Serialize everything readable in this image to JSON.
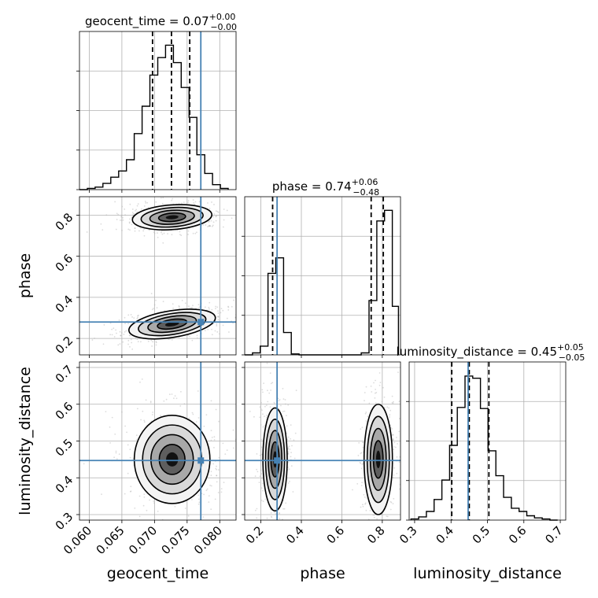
{
  "chart_data": {
    "type": "corner",
    "truth_color": "#4682b4",
    "parameters": [
      {
        "name": "geocent_time",
        "label": "geocent_time",
        "range": [
          0.0585,
          0.0825
        ],
        "ticks": [
          "0.060",
          "0.065",
          "0.070",
          "0.075",
          "0.080"
        ],
        "tick_values": [
          0.06,
          0.065,
          0.07,
          0.075,
          0.08
        ],
        "truth": 0.0771,
        "quantiles": [
          0.0697,
          0.0726,
          0.0754
        ],
        "title_main": "geocent_time = 0.07",
        "title_sup": "+0.00",
        "title_sub": "−0.00"
      },
      {
        "name": "phase",
        "label": "phase",
        "range": [
          0.12,
          0.89
        ],
        "ticks": [
          "0.2",
          "0.4",
          "0.6",
          "0.8"
        ],
        "tick_values": [
          0.2,
          0.4,
          0.6,
          0.8
        ],
        "truth": 0.28,
        "quantiles": [
          0.258,
          0.745,
          0.805
        ],
        "title_main": "phase = 0.74",
        "title_sup": "+0.06",
        "title_sub": "−0.48"
      },
      {
        "name": "luminosity_distance",
        "label": "luminosity_distance",
        "range": [
          0.285,
          0.715
        ],
        "ticks": [
          "0.3",
          "0.4",
          "0.5",
          "0.6",
          "0.7"
        ],
        "tick_values": [
          0.3,
          0.4,
          0.5,
          0.6,
          0.7
        ],
        "truth": 0.447,
        "quantiles": [
          0.402,
          0.45,
          0.504
        ],
        "title_main": "luminosity_distance = 0.45",
        "title_sup": "+0.05",
        "title_sub": "−0.05"
      }
    ],
    "histograms": {
      "geocent_time": {
        "bin_edges": [
          0.0585,
          0.0597,
          0.0609,
          0.0621,
          0.0633,
          0.0645,
          0.0657,
          0.0669,
          0.0681,
          0.0693,
          0.0705,
          0.0717,
          0.0729,
          0.0741,
          0.0753,
          0.0765,
          0.0777,
          0.0789,
          0.0801,
          0.0813
        ],
        "counts": [
          0,
          1,
          2,
          5,
          10,
          15,
          24,
          45,
          67,
          92,
          106,
          116,
          102,
          82,
          58,
          28,
          13,
          4,
          1
        ],
        "y_max": 127
      },
      "phase": {
        "bin_edges": [
          0.12,
          0.1584,
          0.1968,
          0.2352,
          0.2736,
          0.312,
          0.3504,
          0.3888,
          0.4272,
          0.4656,
          0.504,
          0.5424,
          0.5808,
          0.6192,
          0.6576,
          0.696,
          0.7344,
          0.7728,
          0.8112,
          0.8496,
          0.88
        ],
        "counts": [
          0,
          2,
          9,
          84,
          100,
          23,
          1,
          0,
          0,
          0,
          0,
          0,
          0,
          0,
          0,
          2,
          56,
          138,
          149,
          50
        ],
        "y_max": 163
      },
      "luminosity_distance": {
        "bin_edges": [
          0.29,
          0.3112,
          0.3324,
          0.3536,
          0.3748,
          0.396,
          0.4172,
          0.4384,
          0.4596,
          0.4808,
          0.502,
          0.5232,
          0.5444,
          0.5656,
          0.5868,
          0.608,
          0.6292,
          0.6504,
          0.6716,
          0.6928
        ],
        "counts": [
          1,
          3,
          8,
          19,
          37,
          69,
          104,
          133,
          131,
          103,
          64,
          41,
          21,
          11,
          8,
          4,
          2,
          1,
          0
        ],
        "y_max": 146
      }
    },
    "contours_2d": [
      {
        "x": "geocent_time",
        "y": "phase",
        "modes": [
          {
            "center": [
              0.0727,
              0.79
            ],
            "half_widths": [
              0.0061,
              0.06
            ],
            "tilt_deg": -4
          },
          {
            "center": [
              0.0727,
              0.27
            ],
            "half_widths": [
              0.0067,
              0.065
            ],
            "tilt_deg": -9
          }
        ]
      },
      {
        "x": "geocent_time",
        "y": "luminosity_distance",
        "modes": [
          {
            "center": [
              0.0727,
              0.45
            ],
            "half_widths": [
              0.0058,
              0.12
            ],
            "tilt_deg": 0
          }
        ]
      },
      {
        "x": "phase",
        "y": "luminosity_distance",
        "modes": [
          {
            "center": [
              0.27,
              0.45
            ],
            "half_widths": [
              0.06,
              0.14
            ],
            "tilt_deg": 0
          },
          {
            "center": [
              0.78,
              0.45
            ],
            "half_widths": [
              0.07,
              0.15
            ],
            "tilt_deg": 0
          }
        ]
      }
    ],
    "contour_levels": [
      0.25,
      0.5,
      0.75,
      0.95
    ],
    "grid": true,
    "legend": "none"
  }
}
